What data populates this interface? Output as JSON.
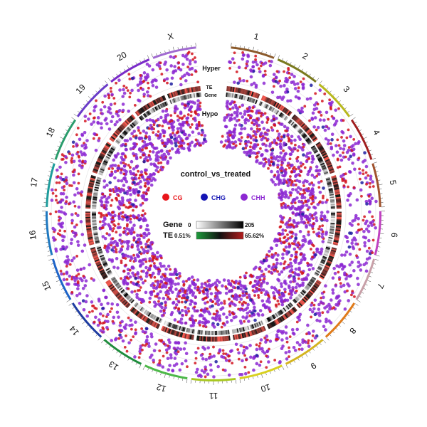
{
  "chart_data": {
    "type": "circos",
    "title": "control_vs_treated",
    "chromosomes": [
      "1",
      "2",
      "3",
      "4",
      "5",
      "6",
      "7",
      "8",
      "9",
      "10",
      "11",
      "12",
      "13",
      "14",
      "15",
      "16",
      "17",
      "18",
      "19",
      "20",
      "X"
    ],
    "chromosome_colors": [
      "#8b5a2b",
      "#7a7a1e",
      "#b8b81e",
      "#a01e1e",
      "#a0522d",
      "#c040c0",
      "#c8a0a8",
      "#e07b1a",
      "#d4b41e",
      "#d8d01e",
      "#a8c81e",
      "#4cb848",
      "#1e8c3c",
      "#1e3ca0",
      "#1e64c8",
      "#1e78c0",
      "#1e9c9c",
      "#2a9c6c",
      "#6a3cc8",
      "#7a2cc8",
      "#a06ad0"
    ],
    "tracks": {
      "hyper": "Hyper",
      "te": "TE",
      "gene": "Gene",
      "hypo": "Hypo"
    },
    "legend": {
      "items": [
        {
          "label": "CG",
          "color": "#e8151a"
        },
        {
          "label": "CHG",
          "color": "#1414b4"
        },
        {
          "label": "CHH",
          "color": "#8c28d2"
        }
      ]
    },
    "scales": {
      "gene": {
        "label": "Gene",
        "min": "0",
        "max": "205",
        "colors": [
          "#ffffff",
          "#000000"
        ]
      },
      "te": {
        "label": "TE",
        "min": "0.51%",
        "max": "65.62%",
        "colors": [
          "#1e9c3c",
          "#000000",
          "#b41e1e"
        ]
      }
    }
  }
}
